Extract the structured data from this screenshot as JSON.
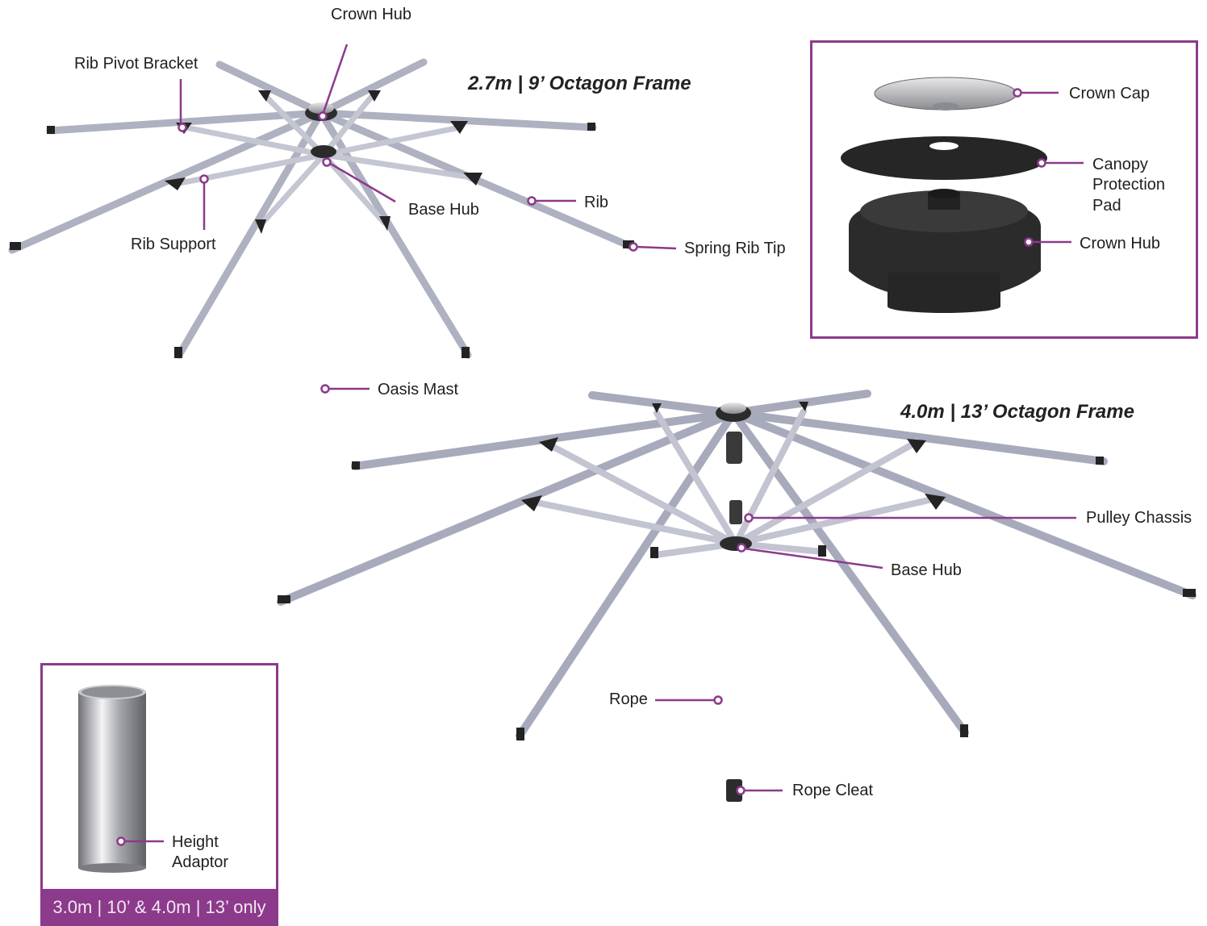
{
  "frame_small": {
    "title": "2.7m | 9’ Octagon Frame",
    "labels": {
      "crown_hub": "Crown Hub",
      "rib_pivot_bracket": "Rib Pivot Bracket",
      "rib_support": "Rib Support",
      "base_hub": "Base Hub",
      "rib": "Rib",
      "spring_rib_tip": "Spring Rib Tip",
      "oasis_mast": "Oasis Mast"
    }
  },
  "frame_large": {
    "title": "4.0m | 13’ Octagon Frame",
    "labels": {
      "pulley_chassis": "Pulley Chassis",
      "base_hub": "Base Hub",
      "rope": "Rope",
      "rope_cleat": "Rope Cleat"
    }
  },
  "crown_detail": {
    "labels": {
      "crown_cap": "Crown Cap",
      "canopy_protection_pad_1": "Canopy",
      "canopy_protection_pad_2": "Protection",
      "canopy_protection_pad_3": "Pad",
      "crown_hub": "Crown Hub"
    }
  },
  "adaptor_detail": {
    "labels": {
      "height_adaptor_1": "Height",
      "height_adaptor_2": "Adaptor"
    },
    "footer": "3.0m | 10’ & 4.0m | 13’ only"
  },
  "colors": {
    "accent": "#8c3a8c",
    "metal": "#b9bcc9",
    "hub": "#2a2a2a"
  }
}
